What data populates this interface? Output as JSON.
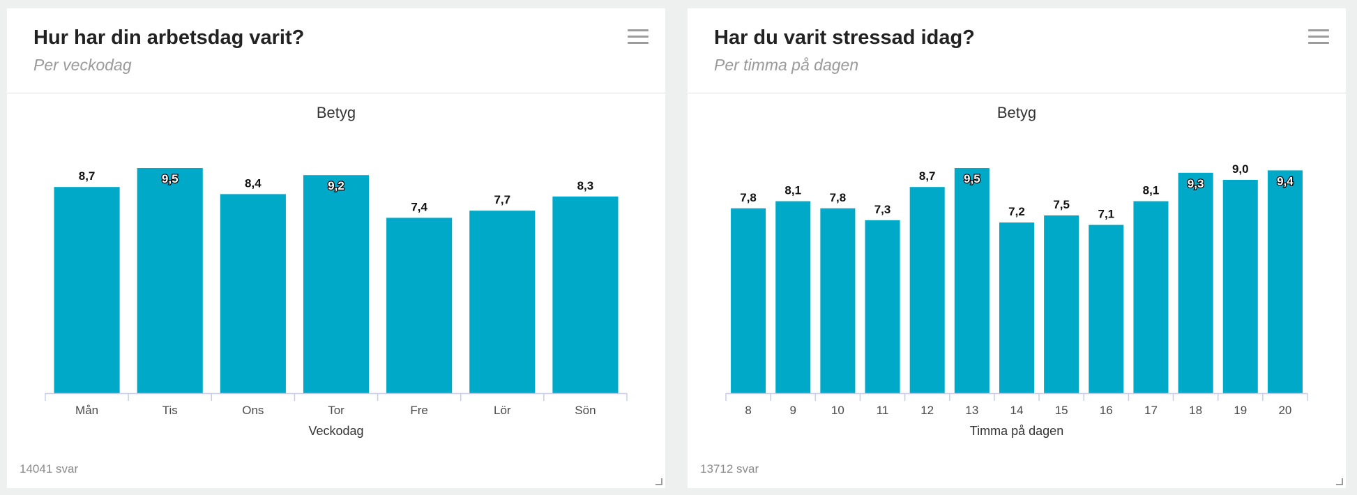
{
  "colors": {
    "bar": "#00a9c8",
    "axis": "#c8cde4",
    "label_dark": "#111111",
    "label_light": "#ffffff"
  },
  "cards": [
    {
      "title": "Hur har din arbetsdag varit?",
      "subtitle": "Per veckodag",
      "footer": "14041 svar",
      "menu_icon": "hamburger-menu-icon",
      "chart_data": {
        "type": "bar",
        "title": "Betyg",
        "xlabel": "Veckodag",
        "ylabel": "",
        "categories": [
          "Mån",
          "Tis",
          "Ons",
          "Tor",
          "Fre",
          "Lör",
          "Sön"
        ],
        "values": [
          8.7,
          9.5,
          8.4,
          9.2,
          7.4,
          7.7,
          8.3
        ],
        "data_labels": [
          "8,7",
          "9,5",
          "8,4",
          "9,2",
          "7,4",
          "7,7",
          "8,3"
        ],
        "ylim": [
          0,
          9.5
        ],
        "grid": false,
        "legend": "none"
      }
    },
    {
      "title": "Har du varit stressad idag?",
      "subtitle": "Per timma på dagen",
      "footer": "13712 svar",
      "menu_icon": "hamburger-menu-icon",
      "chart_data": {
        "type": "bar",
        "title": "Betyg",
        "xlabel": "Timma på dagen",
        "ylabel": "",
        "categories": [
          "8",
          "9",
          "10",
          "11",
          "12",
          "13",
          "14",
          "15",
          "16",
          "17",
          "18",
          "19",
          "20"
        ],
        "values": [
          7.8,
          8.1,
          7.8,
          7.3,
          8.7,
          9.5,
          7.2,
          7.5,
          7.1,
          8.1,
          9.3,
          9.0,
          9.4
        ],
        "data_labels": [
          "7,8",
          "8,1",
          "7,8",
          "7,3",
          "8,7",
          "9,5",
          "7,2",
          "7,5",
          "7,1",
          "8,1",
          "9,3",
          "9,0",
          "9,4"
        ],
        "ylim": [
          0,
          9.5
        ],
        "grid": false,
        "legend": "none"
      }
    }
  ]
}
